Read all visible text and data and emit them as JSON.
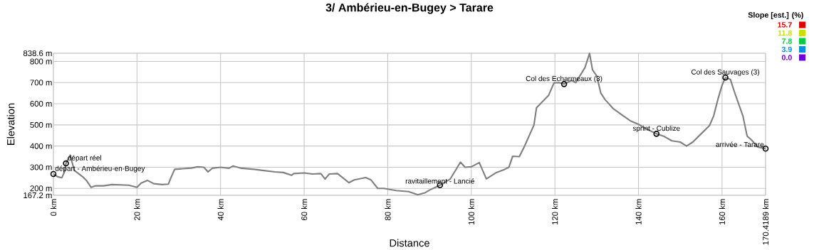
{
  "chart_data": {
    "type": "line",
    "title": "3/ Ambérieu-en-Bugey > Tarare",
    "xlabel": "Distance",
    "ylabel": "Elevation",
    "clabel": "Slope [est.] (%)",
    "clim": [
      0,
      15.7
    ],
    "cticks": [
      {
        "value": 0,
        "label": "0.0"
      },
      3.9,
      7.8,
      11.8,
      15.7
    ],
    "xlim": [
      0,
      170.4189
    ],
    "ylim": [
      167.2,
      838.6
    ],
    "xticks": [
      {
        "value": 0,
        "label": "0 km"
      },
      {
        "value": 20,
        "label": "20 km"
      },
      {
        "value": 40,
        "label": "40 km"
      },
      {
        "value": 60,
        "label": "60 km"
      },
      {
        "value": 80,
        "label": "80 km"
      },
      {
        "value": 100,
        "label": "100 km"
      },
      {
        "value": 120,
        "label": "120 km"
      },
      {
        "value": 140,
        "label": "140 km"
      },
      {
        "value": 160,
        "label": "160 km"
      },
      {
        "value": 170.4189,
        "label": "170.4189 km"
      }
    ],
    "yticks": [
      {
        "value": 167.2,
        "label": "167.2 m"
      },
      {
        "value": 200,
        "label": "200 m"
      },
      {
        "value": 300,
        "label": "300 m"
      },
      {
        "value": 400,
        "label": "400 m"
      },
      {
        "value": 500,
        "label": "500 m"
      },
      {
        "value": 600,
        "label": "600 m"
      },
      {
        "value": 700,
        "label": "700 m"
      },
      {
        "value": 800,
        "label": "800 m"
      },
      {
        "value": 838.6,
        "label": "838.6 m"
      }
    ],
    "grid": true,
    "series": [
      {
        "color": "#808080",
        "x": [
          0,
          1,
          2,
          2.7,
          3,
          4,
          5,
          6,
          7,
          8,
          9,
          10,
          12,
          14,
          18,
          20,
          21,
          22.5,
          24,
          26,
          27.5,
          28,
          29,
          31,
          33,
          34.5,
          36,
          37,
          38,
          40,
          42,
          43,
          45,
          48,
          50,
          53,
          55,
          57,
          57.5,
          60,
          62,
          64,
          65,
          66,
          68,
          70.7,
          72,
          74.7,
          76,
          77.6,
          79,
          82,
          85,
          87.2,
          89,
          90,
          92.5,
          93,
          95,
          97.4,
          98.5,
          100,
          101.9,
          103.6,
          106,
          108,
          109,
          109.9,
          111.5,
          112.8,
          115,
          115.6,
          118.5,
          119.8,
          121,
          122.2,
          124,
          125,
          127.2,
          128.3,
          129,
          130,
          131,
          132,
          134,
          136,
          138,
          140,
          142,
          144.3,
          146,
          148,
          150,
          151.5,
          153,
          155,
          157,
          158,
          159,
          160,
          160.8,
          162,
          163,
          165,
          166,
          167,
          168.5,
          170.4189
        ],
        "values": [
          268,
          255,
          250,
          280,
          318,
          357,
          285,
          270,
          255,
          235,
          205,
          212,
          212,
          218,
          215,
          205,
          225,
          238,
          222,
          218,
          220,
          245,
          290,
          293,
          296,
          302,
          300,
          278,
          295,
          300,
          295,
          306,
          295,
          290,
          285,
          278,
          275,
          262,
          270,
          273,
          268,
          270,
          244,
          268,
          270,
          227,
          240,
          251,
          240,
          200,
          200,
          190,
          185,
          170,
          180,
          192,
          215,
          220,
          245,
          324,
          300,
          302,
          322,
          245,
          275,
          290,
          300,
          352,
          350,
          402,
          500,
          581,
          640,
          699,
          700,
          693,
          710,
          700,
          771,
          838,
          760,
          732,
          650,
          620,
          576,
          548,
          520,
          503,
          480,
          458,
          447,
          425,
          419,
          400,
          419,
          458,
          497,
          543,
          620,
          687,
          724,
          715,
          654,
          542,
          447,
          430,
          396,
          388
        ]
      },
      {
        "type": "scatter",
        "color": "#000000",
        "marker": "circle",
        "x": [
          0,
          3,
          92.5,
          122.2,
          144.3,
          160.8,
          170.4189
        ],
        "values": [
          268,
          318,
          215,
          693,
          458,
          724,
          388
        ]
      }
    ],
    "annotations": [
      {
        "text": "départ - Ambérieu-en-Bugey",
        "x": 0,
        "y": 268
      },
      {
        "text": "départ réel",
        "x": 3,
        "y": 318
      },
      {
        "text": "ravitaillement - Lancié",
        "x": 92.5,
        "y": 215
      },
      {
        "text": "Col des Echarmeaux (3)",
        "x": 122.2,
        "y": 693
      },
      {
        "text": "sprint - Cublize",
        "x": 144.3,
        "y": 458
      },
      {
        "text": "Col des Sauvages (3)",
        "x": 160.8,
        "y": 724
      },
      {
        "text": "arrivée - Tarare",
        "x": 170.4189,
        "y": 388
      }
    ]
  }
}
